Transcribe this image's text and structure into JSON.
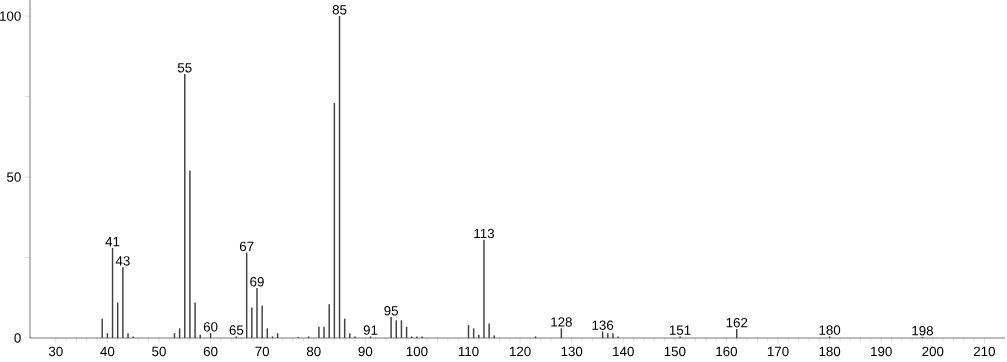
{
  "chart_data": {
    "type": "bar",
    "color": "#404040",
    "x": [
      39,
      40,
      41,
      42,
      43,
      44,
      45,
      53,
      54,
      55,
      56,
      57,
      58,
      60,
      65,
      67,
      68,
      69,
      70,
      71,
      72,
      73,
      77,
      79,
      81,
      82,
      83,
      84,
      85,
      86,
      87,
      88,
      91,
      95,
      96,
      97,
      98,
      99,
      100,
      101,
      110,
      111,
      112,
      113,
      114,
      115,
      123,
      128,
      136,
      137,
      138,
      139,
      151,
      162,
      180,
      198
    ],
    "values": [
      6,
      1.5,
      28,
      11,
      22,
      1.5,
      0.5,
      1.5,
      3,
      82,
      52,
      11,
      1,
      1.5,
      0.5,
      26.5,
      9.5,
      15.5,
      10,
      3,
      0.5,
      1.5,
      0.3,
      0.5,
      3.5,
      3.5,
      10.5,
      73,
      100,
      6,
      1.5,
      0.5,
      0.5,
      6.5,
      5.5,
      5.5,
      3.5,
      0.5,
      0.5,
      0.5,
      4,
      3,
      1,
      30.5,
      4.5,
      0.8,
      0.5,
      3,
      2,
      1.5,
      1.5,
      0.5,
      0.5,
      2.8,
      0.5,
      0.3
    ],
    "xlim": [
      25,
      214
    ],
    "ylim": [
      0,
      105
    ],
    "xticks": [
      30,
      40,
      50,
      60,
      70,
      80,
      90,
      100,
      110,
      120,
      130,
      140,
      150,
      160,
      170,
      180,
      190,
      200,
      210
    ],
    "yticks": [
      0,
      {
        "value": 25,
        "label": null
      },
      50,
      {
        "value": 75,
        "label": null
      },
      100
    ],
    "grid": false,
    "annotations": [
      {
        "text": "41",
        "x": 41,
        "y": 28
      },
      {
        "text": "43",
        "x": 43,
        "y": 22
      },
      {
        "text": "55",
        "x": 55,
        "y": 82
      },
      {
        "text": "60",
        "x": 60,
        "y": 1.5
      },
      {
        "text": "65",
        "x": 65,
        "y": 0.5
      },
      {
        "text": "67",
        "x": 67,
        "y": 26.5
      },
      {
        "text": "69",
        "x": 69,
        "y": 15.5
      },
      {
        "text": "85",
        "x": 85,
        "y": 100
      },
      {
        "text": "91",
        "x": 91,
        "y": 0.5
      },
      {
        "text": "95",
        "x": 95,
        "y": 6.5
      },
      {
        "text": "113",
        "x": 113,
        "y": 30.5
      },
      {
        "text": "128",
        "x": 128,
        "y": 3
      },
      {
        "text": "136",
        "x": 136,
        "y": 2
      },
      {
        "text": "151",
        "x": 151,
        "y": 0.5
      },
      {
        "text": "162",
        "x": 162,
        "y": 2.8
      },
      {
        "text": "180",
        "x": 180,
        "y": 0.5
      },
      {
        "text": "198",
        "x": 198,
        "y": 0.3
      }
    ]
  }
}
